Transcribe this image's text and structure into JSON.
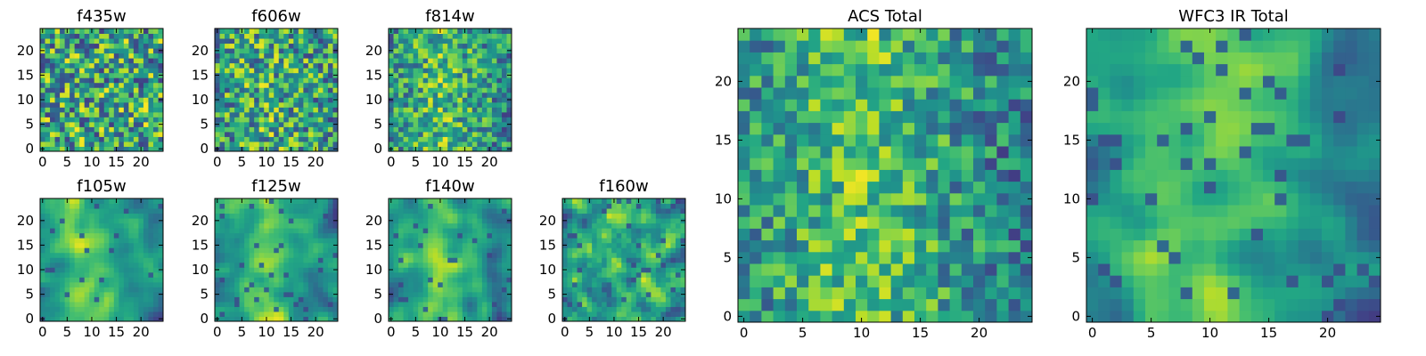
{
  "chart_data": [
    {
      "type": "heatmap",
      "title": "f435w",
      "xticks": [
        "0",
        "5",
        "10",
        "15",
        "20"
      ],
      "yticks": [
        "0",
        "5",
        "10",
        "15",
        "20"
      ],
      "xlim": [
        -0.5,
        24.5
      ],
      "ylim": [
        -0.5,
        24.5
      ],
      "grid_size": 25,
      "colormap": "viridis",
      "seed": 11,
      "smooth": 0,
      "hot": 0.0,
      "holes": 0.0
    },
    {
      "type": "heatmap",
      "title": "f606w",
      "xticks": [
        "0",
        "5",
        "10",
        "15",
        "20"
      ],
      "yticks": [
        "0",
        "5",
        "10",
        "15",
        "20"
      ],
      "xlim": [
        -0.5,
        24.5
      ],
      "ylim": [
        -0.5,
        24.5
      ],
      "grid_size": 25,
      "colormap": "viridis",
      "seed": 23,
      "smooth": 0,
      "hot": 0.1,
      "holes": 0.0
    },
    {
      "type": "heatmap",
      "title": "f814w",
      "xticks": [
        "0",
        "5",
        "10",
        "15",
        "20"
      ],
      "yticks": [
        "0",
        "5",
        "10",
        "15",
        "20"
      ],
      "xlim": [
        -0.5,
        24.5
      ],
      "ylim": [
        -0.5,
        24.5
      ],
      "grid_size": 25,
      "colormap": "viridis",
      "seed": 37,
      "smooth": 0,
      "hot": 0.25,
      "holes": 0.0
    },
    {
      "type": "heatmap",
      "title": "f105w",
      "xticks": [
        "0",
        "5",
        "10",
        "15",
        "20"
      ],
      "yticks": [
        "0",
        "5",
        "10",
        "15",
        "20"
      ],
      "xlim": [
        -0.5,
        24.5
      ],
      "ylim": [
        -0.5,
        24.5
      ],
      "grid_size": 25,
      "colormap": "viridis",
      "seed": 41,
      "smooth": 2,
      "hot": 0.3,
      "holes": 0.15
    },
    {
      "type": "heatmap",
      "title": "f125w",
      "xticks": [
        "0",
        "5",
        "10",
        "15",
        "20"
      ],
      "yticks": [
        "0",
        "5",
        "10",
        "15",
        "20"
      ],
      "xlim": [
        -0.5,
        24.5
      ],
      "ylim": [
        -0.5,
        24.5
      ],
      "grid_size": 25,
      "colormap": "viridis",
      "seed": 53,
      "smooth": 2,
      "hot": 0.3,
      "holes": 0.15
    },
    {
      "type": "heatmap",
      "title": "f140w",
      "xticks": [
        "0",
        "5",
        "10",
        "15",
        "20"
      ],
      "yticks": [
        "0",
        "5",
        "10",
        "15",
        "20"
      ],
      "xlim": [
        -0.5,
        24.5
      ],
      "ylim": [
        -0.5,
        24.5
      ],
      "grid_size": 25,
      "colormap": "viridis",
      "seed": 67,
      "smooth": 2,
      "hot": 0.35,
      "holes": 0.12
    },
    {
      "type": "heatmap",
      "title": "f160w",
      "xticks": [
        "0",
        "5",
        "10",
        "15",
        "20"
      ],
      "yticks": [
        "0",
        "5",
        "10",
        "15",
        "20"
      ],
      "xlim": [
        -0.5,
        24.5
      ],
      "ylim": [
        -0.5,
        24.5
      ],
      "grid_size": 25,
      "colormap": "viridis",
      "seed": 79,
      "smooth": 1,
      "hot": 0.15,
      "holes": 0.2
    },
    {
      "type": "heatmap",
      "title": "ACS Total",
      "xticks": [
        "0",
        "5",
        "10",
        "15",
        "20"
      ],
      "yticks": [
        "0",
        "5",
        "10",
        "15",
        "20"
      ],
      "xlim": [
        -0.5,
        24.5
      ],
      "ylim": [
        -0.5,
        24.5
      ],
      "grid_size": 25,
      "colormap": "viridis",
      "seed": 97,
      "smooth": 0,
      "hot": 0.35,
      "holes": 0.0
    },
    {
      "type": "heatmap",
      "title": "WFC3 IR Total",
      "xticks": [
        "0",
        "5",
        "10",
        "15",
        "20"
      ],
      "yticks": [
        "0",
        "5",
        "10",
        "15",
        "20"
      ],
      "xlim": [
        -0.5,
        24.5
      ],
      "ylim": [
        -0.5,
        24.5
      ],
      "grid_size": 25,
      "colormap": "viridis",
      "seed": 131,
      "smooth": 2,
      "hot": 0.4,
      "holes": 0.3
    }
  ]
}
